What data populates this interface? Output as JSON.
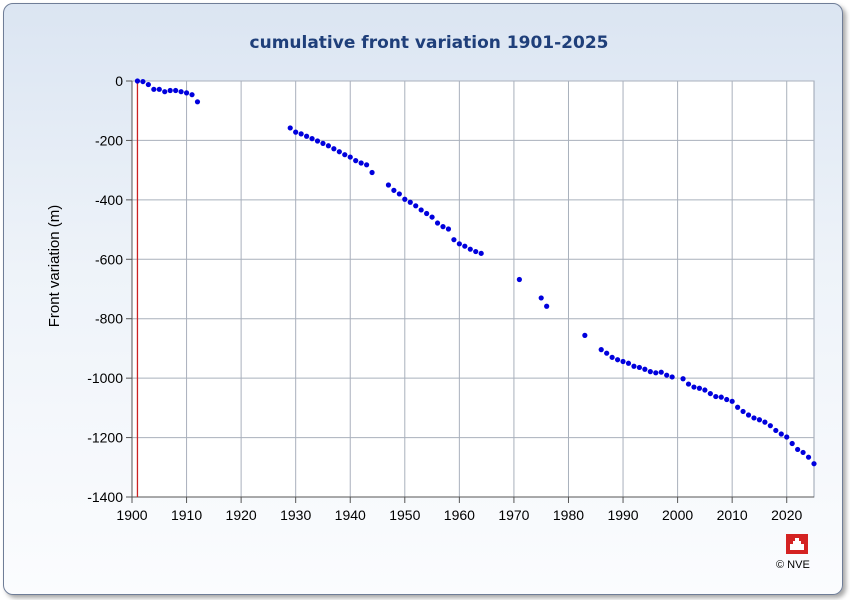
{
  "chart_data": {
    "type": "scatter",
    "title": "cumulative front variation 1901-2025",
    "xlabel": "",
    "ylabel": "Front variation (m)",
    "xlim": [
      1900,
      2025
    ],
    "ylim": [
      -1400,
      0
    ],
    "xticks": [
      "1900",
      "1910",
      "1920",
      "1930",
      "1940",
      "1950",
      "1960",
      "1970",
      "1980",
      "1990",
      "2000",
      "2010",
      "2020"
    ],
    "yticks": [
      "0",
      "-200",
      "-400",
      "-600",
      "-800",
      "-1000",
      "-1200",
      "-1400"
    ],
    "grid": true,
    "reference_line_x": 1901,
    "colors": {
      "points": "#0000dd",
      "reference_line": "#cc2222",
      "title": "#1f3f7a"
    },
    "series": [
      {
        "points": [
          [
            1901,
            0
          ],
          [
            1902,
            -2
          ],
          [
            1903,
            -12
          ],
          [
            1904,
            -28
          ],
          [
            1905,
            -28
          ],
          [
            1906,
            -36
          ],
          [
            1907,
            -32
          ],
          [
            1908,
            -32
          ],
          [
            1909,
            -36
          ],
          [
            1910,
            -40
          ],
          [
            1911,
            -46
          ],
          [
            1912,
            -70
          ],
          [
            1929,
            -158
          ],
          [
            1930,
            -172
          ],
          [
            1931,
            -178
          ],
          [
            1932,
            -186
          ],
          [
            1933,
            -194
          ],
          [
            1934,
            -202
          ],
          [
            1935,
            -210
          ],
          [
            1936,
            -218
          ],
          [
            1937,
            -228
          ],
          [
            1938,
            -238
          ],
          [
            1939,
            -248
          ],
          [
            1940,
            -256
          ],
          [
            1941,
            -268
          ],
          [
            1942,
            -276
          ],
          [
            1943,
            -282
          ],
          [
            1944,
            -308
          ],
          [
            1947,
            -350
          ],
          [
            1948,
            -368
          ],
          [
            1949,
            -380
          ],
          [
            1950,
            -398
          ],
          [
            1951,
            -408
          ],
          [
            1952,
            -420
          ],
          [
            1953,
            -434
          ],
          [
            1954,
            -446
          ],
          [
            1955,
            -458
          ],
          [
            1956,
            -478
          ],
          [
            1957,
            -490
          ],
          [
            1958,
            -498
          ],
          [
            1959,
            -534
          ],
          [
            1960,
            -548
          ],
          [
            1961,
            -556
          ],
          [
            1962,
            -566
          ],
          [
            1963,
            -574
          ],
          [
            1964,
            -580
          ],
          [
            1971,
            -668
          ],
          [
            1975,
            -730
          ],
          [
            1976,
            -758
          ],
          [
            1983,
            -856
          ],
          [
            1986,
            -904
          ],
          [
            1987,
            -916
          ],
          [
            1988,
            -930
          ],
          [
            1989,
            -938
          ],
          [
            1990,
            -944
          ],
          [
            1991,
            -950
          ],
          [
            1992,
            -960
          ],
          [
            1993,
            -964
          ],
          [
            1994,
            -970
          ],
          [
            1995,
            -978
          ],
          [
            1996,
            -982
          ],
          [
            1997,
            -980
          ],
          [
            1998,
            -990
          ],
          [
            1999,
            -996
          ],
          [
            2001,
            -1002
          ],
          [
            2002,
            -1020
          ],
          [
            2003,
            -1030
          ],
          [
            2004,
            -1034
          ],
          [
            2005,
            -1040
          ],
          [
            2006,
            -1052
          ],
          [
            2007,
            -1062
          ],
          [
            2008,
            -1064
          ],
          [
            2009,
            -1072
          ],
          [
            2010,
            -1078
          ],
          [
            2011,
            -1098
          ],
          [
            2012,
            -1112
          ],
          [
            2013,
            -1124
          ],
          [
            2014,
            -1134
          ],
          [
            2015,
            -1140
          ],
          [
            2016,
            -1148
          ],
          [
            2017,
            -1160
          ],
          [
            2018,
            -1176
          ],
          [
            2019,
            -1188
          ],
          [
            2020,
            -1198
          ],
          [
            2021,
            -1220
          ],
          [
            2022,
            -1240
          ],
          [
            2023,
            -1250
          ],
          [
            2024,
            -1266
          ],
          [
            2025,
            -1288
          ]
        ]
      }
    ]
  },
  "footer": {
    "copyright": "© NVE",
    "logo_text": "NVE"
  }
}
